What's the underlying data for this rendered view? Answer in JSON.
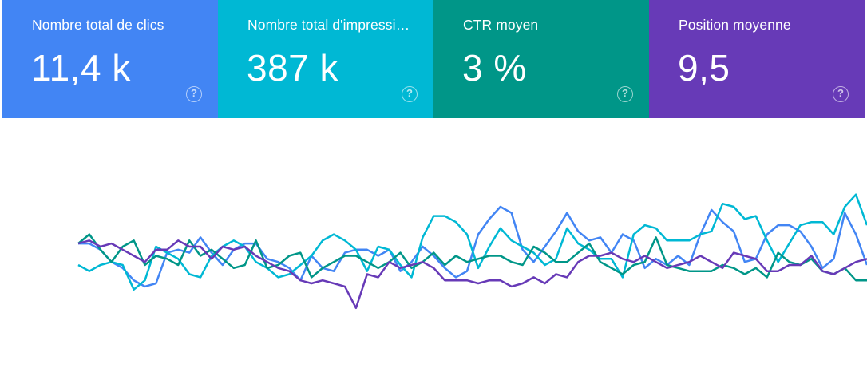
{
  "cards": [
    {
      "label": "Nombre total de clics",
      "value": "11,4 k",
      "color": "#4285f4",
      "help_icon": "help-circle-icon"
    },
    {
      "label": "Nombre total d'impressions",
      "value": "387 k",
      "color": "#00b8d4",
      "help_icon": "help-circle-icon"
    },
    {
      "label": "CTR moyen",
      "value": "3 %",
      "color": "#009688",
      "help_icon": "help-circle-icon"
    },
    {
      "label": "Position moyenne",
      "value": "9,5",
      "color": "#673ab7",
      "help_icon": "help-circle-icon"
    }
  ],
  "help_glyph": "?",
  "chart_data": {
    "type": "line",
    "axes_visible": false,
    "grid": false,
    "series": [
      {
        "name": "Nombre total de clics",
        "color": "#4285f4",
        "values": [
          0.64,
          0.64,
          0.6,
          0.52,
          0.48,
          0.4,
          0.36,
          0.38,
          0.58,
          0.6,
          0.58,
          0.68,
          0.58,
          0.5,
          0.6,
          0.64,
          0.64,
          0.54,
          0.52,
          0.48,
          0.4,
          0.56,
          0.48,
          0.46,
          0.58,
          0.6,
          0.6,
          0.56,
          0.6,
          0.46,
          0.52,
          0.62,
          0.56,
          0.48,
          0.42,
          0.46,
          0.7,
          0.8,
          0.88,
          0.84,
          0.6,
          0.52,
          0.62,
          0.72,
          0.84,
          0.72,
          0.66,
          0.68,
          0.58,
          0.7,
          0.66,
          0.48,
          0.54,
          0.5,
          0.56,
          0.5,
          0.7,
          0.86,
          0.78,
          0.72,
          0.52,
          0.54,
          0.7,
          0.76,
          0.76,
          0.72,
          0.62,
          0.48,
          0.54,
          0.84,
          0.7,
          0.5
        ]
      },
      {
        "name": "Nombre total d'impressions",
        "color": "#00b8d4",
        "values": [
          0.5,
          0.46,
          0.5,
          0.52,
          0.5,
          0.34,
          0.4,
          0.62,
          0.58,
          0.54,
          0.44,
          0.42,
          0.56,
          0.62,
          0.66,
          0.62,
          0.52,
          0.48,
          0.42,
          0.44,
          0.5,
          0.56,
          0.66,
          0.7,
          0.66,
          0.6,
          0.46,
          0.62,
          0.6,
          0.5,
          0.42,
          0.68,
          0.82,
          0.82,
          0.78,
          0.7,
          0.48,
          0.62,
          0.74,
          0.66,
          0.62,
          0.58,
          0.5,
          0.54,
          0.74,
          0.64,
          0.6,
          0.54,
          0.54,
          0.42,
          0.7,
          0.76,
          0.74,
          0.66,
          0.66,
          0.66,
          0.7,
          0.72,
          0.9,
          0.88,
          0.8,
          0.82,
          0.66,
          0.52,
          0.64,
          0.76,
          0.78,
          0.78,
          0.7,
          0.88,
          0.96,
          0.76
        ]
      },
      {
        "name": "CTR moyen",
        "color": "#009688",
        "values": [
          0.64,
          0.7,
          0.6,
          0.52,
          0.62,
          0.66,
          0.5,
          0.56,
          0.54,
          0.5,
          0.66,
          0.56,
          0.6,
          0.54,
          0.48,
          0.5,
          0.66,
          0.48,
          0.5,
          0.56,
          0.58,
          0.42,
          0.48,
          0.52,
          0.56,
          0.56,
          0.52,
          0.48,
          0.52,
          0.58,
          0.48,
          0.52,
          0.58,
          0.5,
          0.56,
          0.52,
          0.54,
          0.56,
          0.56,
          0.52,
          0.5,
          0.62,
          0.58,
          0.52,
          0.52,
          0.58,
          0.64,
          0.52,
          0.48,
          0.44,
          0.5,
          0.52,
          0.68,
          0.5,
          0.48,
          0.46,
          0.46,
          0.46,
          0.5,
          0.48,
          0.44,
          0.48,
          0.42,
          0.58,
          0.52,
          0.5,
          0.54,
          0.46,
          0.44,
          0.48,
          0.4,
          0.4
        ]
      },
      {
        "name": "Position moyenne",
        "color": "#673ab7",
        "values": [
          0.64,
          0.66,
          0.62,
          0.64,
          0.6,
          0.56,
          0.52,
          0.6,
          0.6,
          0.66,
          0.62,
          0.62,
          0.54,
          0.62,
          0.6,
          0.62,
          0.56,
          0.52,
          0.48,
          0.46,
          0.4,
          0.38,
          0.4,
          0.38,
          0.36,
          0.22,
          0.44,
          0.42,
          0.52,
          0.48,
          0.5,
          0.52,
          0.48,
          0.4,
          0.4,
          0.4,
          0.38,
          0.4,
          0.4,
          0.36,
          0.38,
          0.42,
          0.38,
          0.44,
          0.42,
          0.52,
          0.56,
          0.56,
          0.58,
          0.54,
          0.52,
          0.56,
          0.52,
          0.48,
          0.5,
          0.52,
          0.56,
          0.52,
          0.48,
          0.58,
          0.56,
          0.54,
          0.46,
          0.46,
          0.5,
          0.5,
          0.56,
          0.46,
          0.44,
          0.48,
          0.52,
          0.54
        ]
      }
    ]
  }
}
